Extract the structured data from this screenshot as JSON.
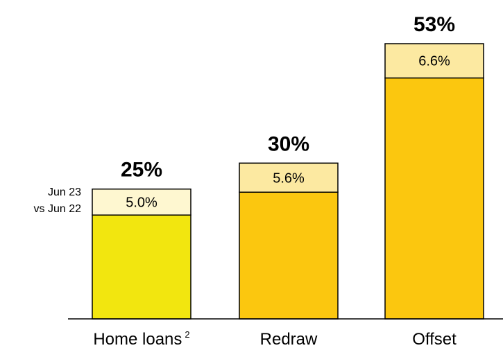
{
  "chart_data": {
    "type": "bar",
    "stacked": true,
    "categories": [
      "Home loans",
      "Redraw",
      "Offset"
    ],
    "category_footnotes": [
      "2",
      "",
      ""
    ],
    "totals": [
      25,
      30,
      53
    ],
    "total_labels": [
      "25%",
      "30%",
      "53%"
    ],
    "increments": [
      5.0,
      5.6,
      6.6
    ],
    "increment_labels": [
      "5.0%",
      "5.6%",
      "6.6%"
    ],
    "annotation": [
      "Jun 23",
      "vs Jun 22"
    ],
    "ylim": [
      0,
      53
    ],
    "grid": false,
    "colors": {
      "base": [
        "#f2e60f",
        "#fbc70f",
        "#fbc70f"
      ],
      "top": [
        "#fef7d0",
        "#fce9a1",
        "#fce9a1"
      ],
      "outline": "#000000"
    }
  }
}
